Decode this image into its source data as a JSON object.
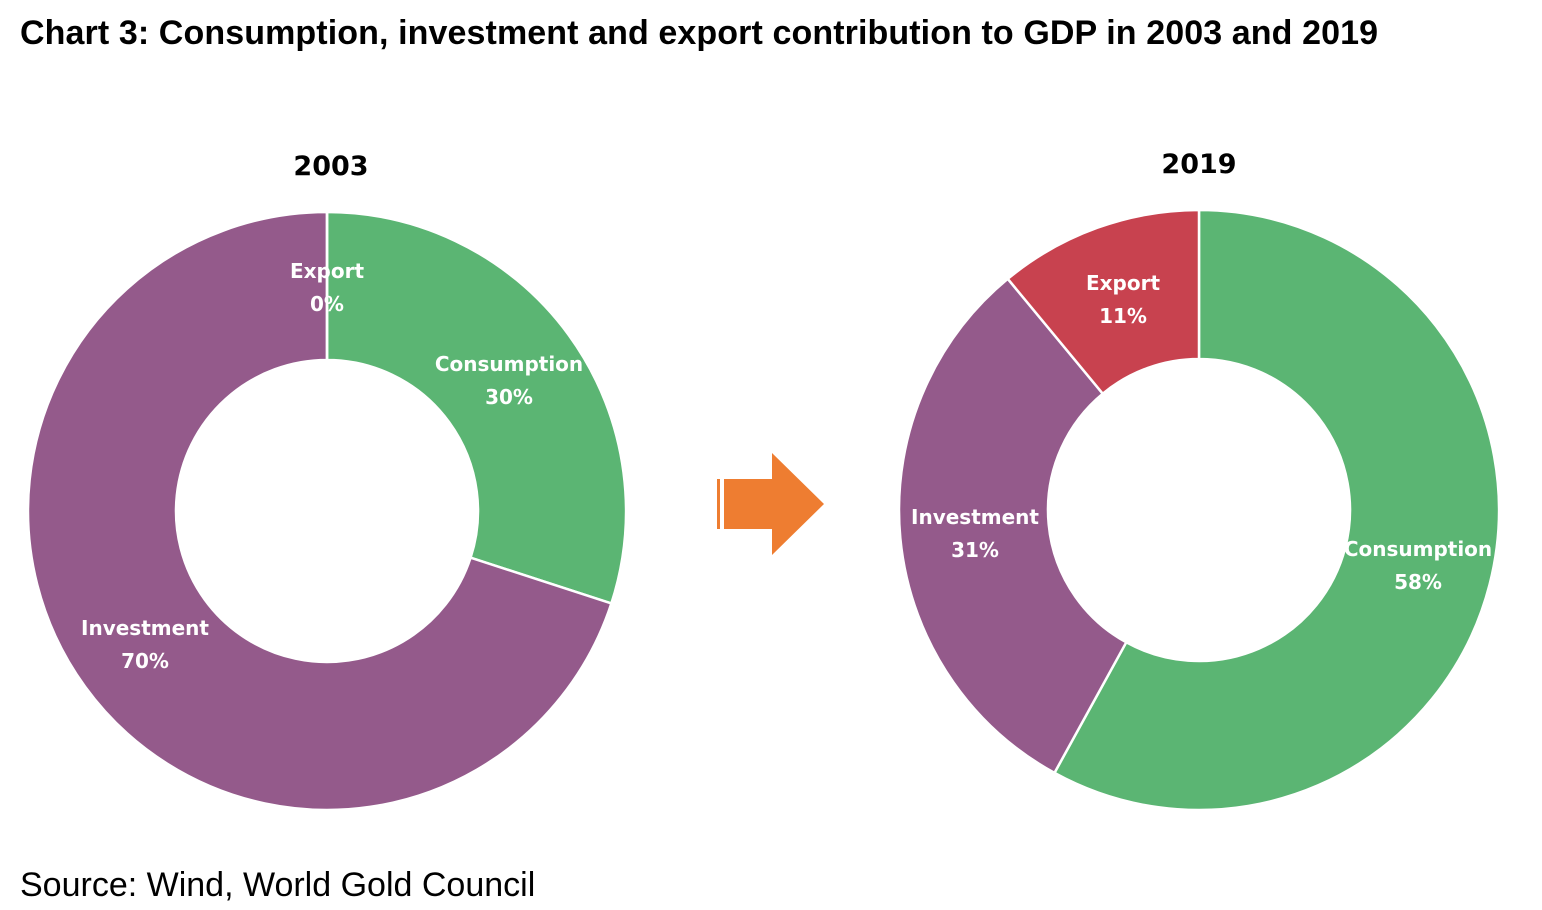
{
  "title": "Chart 3: Consumption, investment and export contribution to GDP in 2003 and 2019",
  "source": "Source: Wind, World Gold Council",
  "colors": {
    "consumption": "#5BB573",
    "investment": "#945A8B",
    "export": "#C8424F",
    "arrow": "#EE7D31"
  },
  "arrow_icon": "arrow-right-icon",
  "chart_data": [
    {
      "type": "pie",
      "subtype": "donut",
      "title": "2003",
      "slices": [
        {
          "name": "Consumption",
          "value": 30,
          "label": "30%"
        },
        {
          "name": "Investment",
          "value": 70,
          "label": "70%"
        },
        {
          "name": "Export",
          "value": 0,
          "label": "0%"
        }
      ]
    },
    {
      "type": "pie",
      "subtype": "donut",
      "title": "2019",
      "slices": [
        {
          "name": "Consumption",
          "value": 58,
          "label": "58%"
        },
        {
          "name": "Investment",
          "value": 31,
          "label": "31%"
        },
        {
          "name": "Export",
          "value": 11,
          "label": "11%"
        }
      ]
    }
  ]
}
